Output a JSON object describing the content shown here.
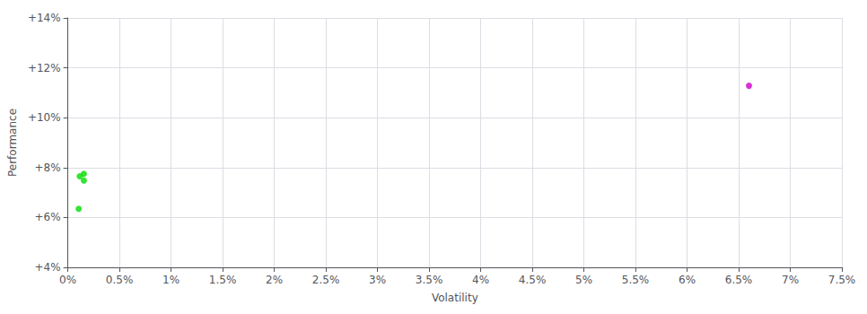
{
  "chart_data": {
    "type": "scatter",
    "xlabel": "Volatility",
    "ylabel": "Performance",
    "xlim": [
      0,
      0.075
    ],
    "ylim": [
      0.04,
      0.14
    ],
    "xticks": [
      {
        "value": 0.0,
        "label": "0%"
      },
      {
        "value": 0.005,
        "label": "0.5%"
      },
      {
        "value": 0.01,
        "label": "1%"
      },
      {
        "value": 0.015,
        "label": "1.5%"
      },
      {
        "value": 0.02,
        "label": "2%"
      },
      {
        "value": 0.025,
        "label": "2.5%"
      },
      {
        "value": 0.03,
        "label": "3%"
      },
      {
        "value": 0.035,
        "label": "3.5%"
      },
      {
        "value": 0.04,
        "label": "4%"
      },
      {
        "value": 0.045,
        "label": "4.5%"
      },
      {
        "value": 0.05,
        "label": "5%"
      },
      {
        "value": 0.055,
        "label": "5.5%"
      },
      {
        "value": 0.06,
        "label": "6%"
      },
      {
        "value": 0.065,
        "label": "6.5%"
      },
      {
        "value": 0.07,
        "label": "7%"
      },
      {
        "value": 0.075,
        "label": "7.5%"
      }
    ],
    "yticks": [
      {
        "value": 0.04,
        "label": "+4%"
      },
      {
        "value": 0.06,
        "label": "+6%"
      },
      {
        "value": 0.08,
        "label": "+8%"
      },
      {
        "value": 0.1,
        "label": "+10%"
      },
      {
        "value": 0.12,
        "label": "+12%"
      },
      {
        "value": 0.14,
        "label": "+14%"
      }
    ],
    "grid": true,
    "series": [
      {
        "color": "#00dd00",
        "x": [
          0.00115,
          0.00155,
          0.00155,
          0.00105
        ],
        "values": [
          0.0765,
          0.0775,
          0.0748,
          0.0635
        ]
      },
      {
        "color": "#cc00cc",
        "x": [
          0.066
        ],
        "values": [
          0.1128
        ]
      }
    ]
  }
}
